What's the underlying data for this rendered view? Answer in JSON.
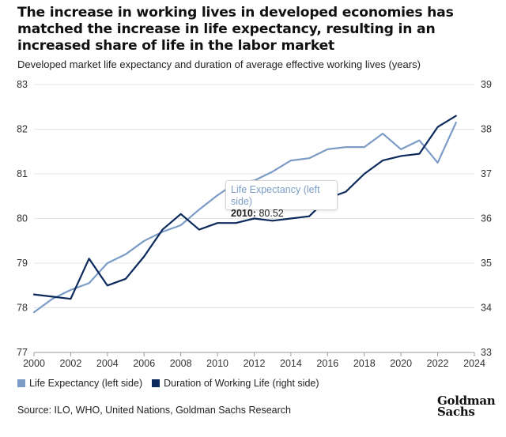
{
  "title": "The increase in working lives in developed economies has matched the increase in life expectancy, resulting in an increased share of life in the labor market",
  "subtitle": "Developed market life expectancy and duration of average effective working lives (years)",
  "source": "Source: ILO, WHO, United Nations, Goldman Sachs Research",
  "logo": {
    "line1": "Goldman",
    "line2": "Sachs"
  },
  "tooltip": {
    "series": "Life Expectancy (left side)",
    "year": "2010:",
    "value": "80.52"
  },
  "colors": {
    "life": "#7b9cc6",
    "work": "#0c2a5b",
    "grid": "#e3e3e3",
    "axis": "#9a9a9a"
  },
  "legend": [
    {
      "label": "Life Expectancy (left side)",
      "color": "#7b9cc6"
    },
    {
      "label": "Duration of Working Life (right side)",
      "color": "#0c2a5b"
    }
  ],
  "chart_data": {
    "type": "line",
    "x": [
      2000,
      2001,
      2002,
      2003,
      2004,
      2005,
      2006,
      2007,
      2008,
      2009,
      2010,
      2011,
      2012,
      2013,
      2014,
      2015,
      2016,
      2017,
      2018,
      2019,
      2020,
      2021,
      2022,
      2023
    ],
    "xlim": [
      2000,
      2024
    ],
    "xticks": [
      "2000",
      "2002",
      "2004",
      "2006",
      "2008",
      "2010",
      "2012",
      "2014",
      "2016",
      "2018",
      "2020",
      "2022",
      "2024"
    ],
    "ylim_left": [
      77,
      83
    ],
    "yticks_left": [
      "77",
      "78",
      "79",
      "80",
      "81",
      "82",
      "83"
    ],
    "ylim_right": [
      33,
      39
    ],
    "yticks_right": [
      "33",
      "34",
      "35",
      "36",
      "37",
      "38",
      "39"
    ],
    "grid": "horizontal",
    "legend_position": "bottom-left",
    "series": [
      {
        "name": "Life Expectancy (left side)",
        "axis": "left",
        "values": [
          77.9,
          78.2,
          78.4,
          78.55,
          79.0,
          79.2,
          79.5,
          79.7,
          79.85,
          80.2,
          80.52,
          80.8,
          80.85,
          81.05,
          81.3,
          81.35,
          81.55,
          81.6,
          81.6,
          81.9,
          81.55,
          81.75,
          81.25,
          82.15
        ]
      },
      {
        "name": "Duration of Working Life (right side)",
        "axis": "right",
        "values": [
          34.3,
          34.25,
          34.2,
          35.1,
          34.5,
          34.65,
          35.15,
          35.75,
          36.1,
          35.75,
          35.9,
          35.9,
          36.0,
          35.95,
          36.0,
          36.05,
          36.45,
          36.6,
          37.0,
          37.3,
          37.4,
          37.45,
          38.05,
          38.3
        ]
      }
    ]
  }
}
